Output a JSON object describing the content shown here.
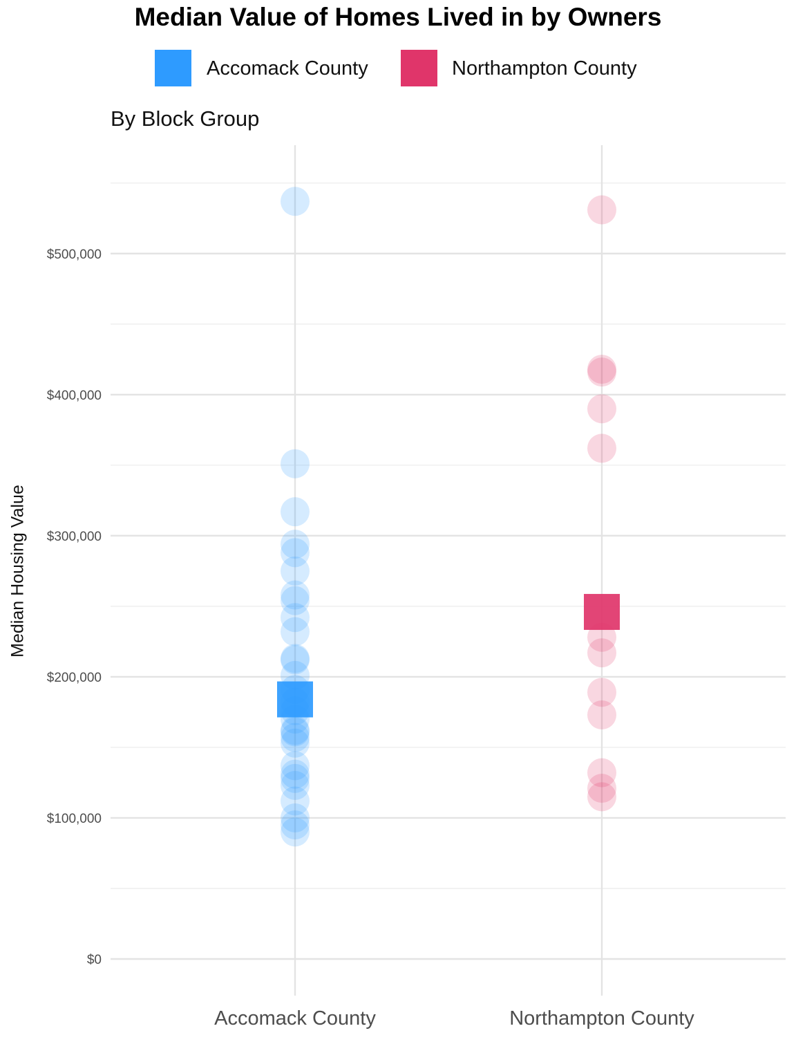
{
  "chart_data": {
    "type": "scatter",
    "title": "Median Value of Homes Lived in by Owners",
    "subtitle": "By Block Group",
    "xlabel": "",
    "ylabel": "Median Housing Value",
    "categories": [
      "Accomack County",
      "Northampton County"
    ],
    "ylim": [
      -25000,
      575000
    ],
    "yticks": [
      0,
      100000,
      200000,
      300000,
      400000,
      500000
    ],
    "ytick_labels": [
      "$0",
      "$100,000",
      "$200,000",
      "$300,000",
      "$400,000",
      "$500,000"
    ],
    "legend_position": "top",
    "grid": true,
    "series": [
      {
        "name": "Accomack County",
        "color": "#2E9BFF",
        "category": "Accomack County",
        "values": [
          537000,
          351000,
          317000,
          294000,
          288000,
          275000,
          258000,
          254000,
          242000,
          232000,
          213000,
          212000,
          201000,
          191000,
          182000,
          176000,
          170000,
          162000,
          161000,
          157000,
          153000,
          137000,
          131000,
          128000,
          123000,
          112000,
          100000,
          95000,
          90000
        ],
        "median": 184000
      },
      {
        "name": "Northampton County",
        "color": "#E0356A",
        "category": "Northampton County",
        "values": [
          531000,
          418000,
          416000,
          390000,
          362000,
          228000,
          217000,
          189000,
          173000,
          132000,
          121000,
          115000
        ],
        "median": 246000
      }
    ]
  }
}
